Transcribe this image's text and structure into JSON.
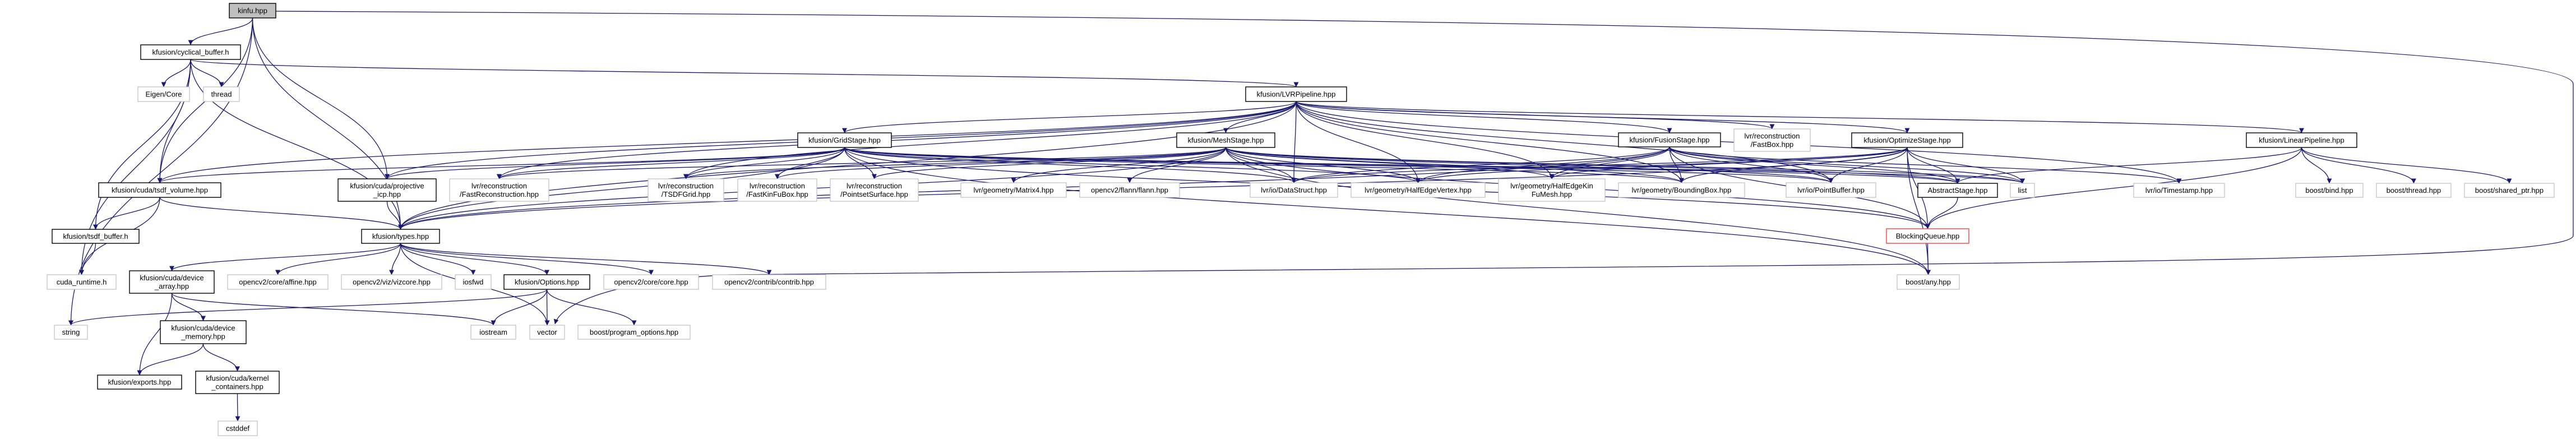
{
  "graph": {
    "type": "include-dependency-graph",
    "colors": {
      "edge": "#191970",
      "documented_border": "#000000",
      "external_border": "#bfbfbf",
      "root_fill": "#bfbfbf",
      "highlighted_border": "#ff4040"
    },
    "nodes": [
      {
        "id": "kinfu",
        "lines": [
          "kinfu.hpp"
        ],
        "kind": "root"
      },
      {
        "id": "cyc",
        "lines": [
          "kfusion/cyclical_buffer.h"
        ],
        "kind": "documented"
      },
      {
        "id": "eigen",
        "lines": [
          "Eigen/Core"
        ],
        "kind": "external"
      },
      {
        "id": "thread",
        "lines": [
          "thread"
        ],
        "kind": "external"
      },
      {
        "id": "lvrp",
        "lines": [
          "kfusion/LVRPipeline.hpp"
        ],
        "kind": "documented"
      },
      {
        "id": "grid",
        "lines": [
          "kfusion/GridStage.hpp"
        ],
        "kind": "documented"
      },
      {
        "id": "mesh",
        "lines": [
          "kfusion/MeshStage.hpp"
        ],
        "kind": "documented"
      },
      {
        "id": "fusion",
        "lines": [
          "kfusion/FusionStage.hpp"
        ],
        "kind": "documented"
      },
      {
        "id": "fastbox",
        "lines": [
          "lvr/reconstruction",
          "/FastBox.hpp"
        ],
        "kind": "external"
      },
      {
        "id": "optim",
        "lines": [
          "kfusion/OptimizeStage.hpp"
        ],
        "kind": "documented"
      },
      {
        "id": "linear",
        "lines": [
          "kfusion/LinearPipeline.hpp"
        ],
        "kind": "documented"
      },
      {
        "id": "tsdfvol",
        "lines": [
          "kfusion/cuda/tsdf_volume.hpp"
        ],
        "kind": "documented"
      },
      {
        "id": "icp",
        "lines": [
          "kfusion/cuda/projective",
          "_icp.hpp"
        ],
        "kind": "documented"
      },
      {
        "id": "fastrec",
        "lines": [
          "lvr/reconstruction",
          "/FastReconstruction.hpp"
        ],
        "kind": "external"
      },
      {
        "id": "tsdfgrid",
        "lines": [
          "lvr/reconstruction",
          "/TSDFGrid.hpp"
        ],
        "kind": "external"
      },
      {
        "id": "fkfbox",
        "lines": [
          "lvr/reconstruction",
          "/FastKinFuBox.hpp"
        ],
        "kind": "external"
      },
      {
        "id": "pss",
        "lines": [
          "lvr/reconstruction",
          "/PointsetSurface.hpp"
        ],
        "kind": "external"
      },
      {
        "id": "matrix4",
        "lines": [
          "lvr/geometry/Matrix4.hpp"
        ],
        "kind": "external"
      },
      {
        "id": "flann",
        "lines": [
          "opencv2/flann/flann.hpp"
        ],
        "kind": "external"
      },
      {
        "id": "datastruct",
        "lines": [
          "lvr/io/DataStruct.hpp"
        ],
        "kind": "external"
      },
      {
        "id": "hev",
        "lines": [
          "lvr/geometry/HalfEdgeVertex.hpp"
        ],
        "kind": "external"
      },
      {
        "id": "hekm",
        "lines": [
          "lvr/geometry/HalfEdgeKin",
          "FuMesh.hpp"
        ],
        "kind": "external"
      },
      {
        "id": "bbox",
        "lines": [
          "lvr/geometry/BoundingBox.hpp"
        ],
        "kind": "external"
      },
      {
        "id": "pbuf",
        "lines": [
          "lvr/io/PointBuffer.hpp"
        ],
        "kind": "external"
      },
      {
        "id": "abstract",
        "lines": [
          "AbstractStage.hpp"
        ],
        "kind": "documented"
      },
      {
        "id": "list",
        "lines": [
          "list"
        ],
        "kind": "external"
      },
      {
        "id": "timestamp",
        "lines": [
          "lvr/io/Timestamp.hpp"
        ],
        "kind": "external"
      },
      {
        "id": "bind",
        "lines": [
          "boost/bind.hpp"
        ],
        "kind": "external"
      },
      {
        "id": "bthread",
        "lines": [
          "boost/thread.hpp"
        ],
        "kind": "external"
      },
      {
        "id": "sptr",
        "lines": [
          "boost/shared_ptr.hpp"
        ],
        "kind": "external"
      },
      {
        "id": "tsdfbuf",
        "lines": [
          "kfusion/tsdf_buffer.h"
        ],
        "kind": "documented"
      },
      {
        "id": "types",
        "lines": [
          "kfusion/types.hpp"
        ],
        "kind": "documented"
      },
      {
        "id": "bq",
        "lines": [
          "BlockingQueue.hpp"
        ],
        "kind": "highlighted"
      },
      {
        "id": "cudart",
        "lines": [
          "cuda_runtime.h"
        ],
        "kind": "external"
      },
      {
        "id": "devarr",
        "lines": [
          "kfusion/cuda/device",
          "_array.hpp"
        ],
        "kind": "documented"
      },
      {
        "id": "affine",
        "lines": [
          "opencv2/core/affine.hpp"
        ],
        "kind": "external"
      },
      {
        "id": "viz",
        "lines": [
          "opencv2/viz/vizcore.hpp"
        ],
        "kind": "external"
      },
      {
        "id": "iosfwd",
        "lines": [
          "iosfwd"
        ],
        "kind": "external"
      },
      {
        "id": "options",
        "lines": [
          "kfusion/Options.hpp"
        ],
        "kind": "documented"
      },
      {
        "id": "core",
        "lines": [
          "opencv2/core/core.hpp"
        ],
        "kind": "external"
      },
      {
        "id": "contrib",
        "lines": [
          "opencv2/contrib/contrib.hpp"
        ],
        "kind": "external"
      },
      {
        "id": "bany",
        "lines": [
          "boost/any.hpp"
        ],
        "kind": "external"
      },
      {
        "id": "string",
        "lines": [
          "string"
        ],
        "kind": "external"
      },
      {
        "id": "iostream",
        "lines": [
          "iostream"
        ],
        "kind": "external"
      },
      {
        "id": "vector",
        "lines": [
          "vector"
        ],
        "kind": "external"
      },
      {
        "id": "progopt",
        "lines": [
          "boost/program_options.hpp"
        ],
        "kind": "external"
      },
      {
        "id": "devmem",
        "lines": [
          "kfusion/cuda/device",
          "_memory.hpp"
        ],
        "kind": "documented"
      },
      {
        "id": "exports",
        "lines": [
          "kfusion/exports.hpp"
        ],
        "kind": "documented"
      },
      {
        "id": "kcont",
        "lines": [
          "kfusion/cuda/kernel",
          "_containers.hpp"
        ],
        "kind": "documented"
      },
      {
        "id": "cstddef",
        "lines": [
          "cstddef"
        ],
        "kind": "external"
      }
    ],
    "edges": [
      [
        "kinfu",
        "cyc"
      ],
      [
        "kinfu",
        "tsdfvol"
      ],
      [
        "kinfu",
        "types"
      ],
      [
        "kinfu",
        "icp"
      ],
      [
        "kinfu",
        "string"
      ],
      [
        "kinfu",
        "vector"
      ],
      [
        "cyc",
        "eigen"
      ],
      [
        "cyc",
        "thread"
      ],
      [
        "cyc",
        "tsdfvol"
      ],
      [
        "cyc",
        "tsdfbuf"
      ],
      [
        "cyc",
        "cudart"
      ],
      [
        "cyc",
        "types"
      ],
      [
        "cyc",
        "lvrp"
      ],
      [
        "lvrp",
        "grid"
      ],
      [
        "lvrp",
        "mesh"
      ],
      [
        "lvrp",
        "fusion"
      ],
      [
        "lvrp",
        "optim"
      ],
      [
        "lvrp",
        "linear"
      ],
      [
        "lvrp",
        "fastbox"
      ],
      [
        "lvrp",
        "tsdfvol"
      ],
      [
        "lvrp",
        "icp"
      ],
      [
        "lvrp",
        "fastrec"
      ],
      [
        "lvrp",
        "types"
      ],
      [
        "lvrp",
        "datastruct"
      ],
      [
        "lvrp",
        "hev"
      ],
      [
        "lvrp",
        "hekm"
      ],
      [
        "lvrp",
        "bbox"
      ],
      [
        "lvrp",
        "pbuf"
      ],
      [
        "lvrp",
        "timestamp"
      ],
      [
        "lvrp",
        "tsdfgrid"
      ],
      [
        "grid",
        "tsdfgrid"
      ],
      [
        "grid",
        "fkfbox"
      ],
      [
        "grid",
        "pss"
      ],
      [
        "grid",
        "fastrec"
      ],
      [
        "grid",
        "tsdfvol"
      ],
      [
        "grid",
        "icp"
      ],
      [
        "grid",
        "types"
      ],
      [
        "grid",
        "abstract"
      ],
      [
        "grid",
        "bq"
      ],
      [
        "grid",
        "datastruct"
      ],
      [
        "grid",
        "hev"
      ],
      [
        "grid",
        "bbox"
      ],
      [
        "grid",
        "pbuf"
      ],
      [
        "grid",
        "list"
      ],
      [
        "grid",
        "bany"
      ],
      [
        "mesh",
        "matrix4"
      ],
      [
        "mesh",
        "flann"
      ],
      [
        "mesh",
        "datastruct"
      ],
      [
        "mesh",
        "hev"
      ],
      [
        "mesh",
        "hekm"
      ],
      [
        "mesh",
        "bbox"
      ],
      [
        "mesh",
        "pbuf"
      ],
      [
        "mesh",
        "abstract"
      ],
      [
        "mesh",
        "bq"
      ],
      [
        "mesh",
        "types"
      ],
      [
        "mesh",
        "bany"
      ],
      [
        "mesh",
        "list"
      ],
      [
        "mesh",
        "tsdfgrid"
      ],
      [
        "mesh",
        "fkfbox"
      ],
      [
        "mesh",
        "pss"
      ],
      [
        "mesh",
        "fastrec"
      ],
      [
        "fusion",
        "hev"
      ],
      [
        "fusion",
        "hekm"
      ],
      [
        "fusion",
        "bbox"
      ],
      [
        "fusion",
        "pbuf"
      ],
      [
        "fusion",
        "abstract"
      ],
      [
        "fusion",
        "bq"
      ],
      [
        "fusion",
        "list"
      ],
      [
        "fusion",
        "datastruct"
      ],
      [
        "fusion",
        "types"
      ],
      [
        "fusion",
        "timestamp"
      ],
      [
        "optim",
        "pbuf"
      ],
      [
        "optim",
        "abstract"
      ],
      [
        "optim",
        "list"
      ],
      [
        "optim",
        "bq"
      ],
      [
        "optim",
        "bany"
      ],
      [
        "optim",
        "hev"
      ],
      [
        "optim",
        "hekm"
      ],
      [
        "optim",
        "bbox"
      ],
      [
        "optim",
        "datastruct"
      ],
      [
        "optim",
        "types"
      ],
      [
        "linear",
        "abstract"
      ],
      [
        "linear",
        "bq"
      ],
      [
        "linear",
        "bind"
      ],
      [
        "linear",
        "bthread"
      ],
      [
        "linear",
        "sptr"
      ],
      [
        "abstract",
        "bq"
      ],
      [
        "bq",
        "bany"
      ],
      [
        "tsdfvol",
        "tsdfbuf"
      ],
      [
        "tsdfvol",
        "cudart"
      ],
      [
        "tsdfvol",
        "types"
      ],
      [
        "tsdfbuf",
        "cudart"
      ],
      [
        "icp",
        "types"
      ],
      [
        "types",
        "devarr"
      ],
      [
        "types",
        "affine"
      ],
      [
        "types",
        "viz"
      ],
      [
        "types",
        "iosfwd"
      ],
      [
        "types",
        "options"
      ],
      [
        "types",
        "core"
      ],
      [
        "types",
        "contrib"
      ],
      [
        "types",
        "vector"
      ],
      [
        "devarr",
        "devmem"
      ],
      [
        "devarr",
        "exports"
      ],
      [
        "devarr",
        "iostream"
      ],
      [
        "devmem",
        "exports"
      ],
      [
        "devmem",
        "kcont"
      ],
      [
        "kcont",
        "cstddef"
      ],
      [
        "options",
        "iostream"
      ],
      [
        "options",
        "vector"
      ],
      [
        "options",
        "progopt"
      ],
      [
        "options",
        "string"
      ]
    ]
  }
}
